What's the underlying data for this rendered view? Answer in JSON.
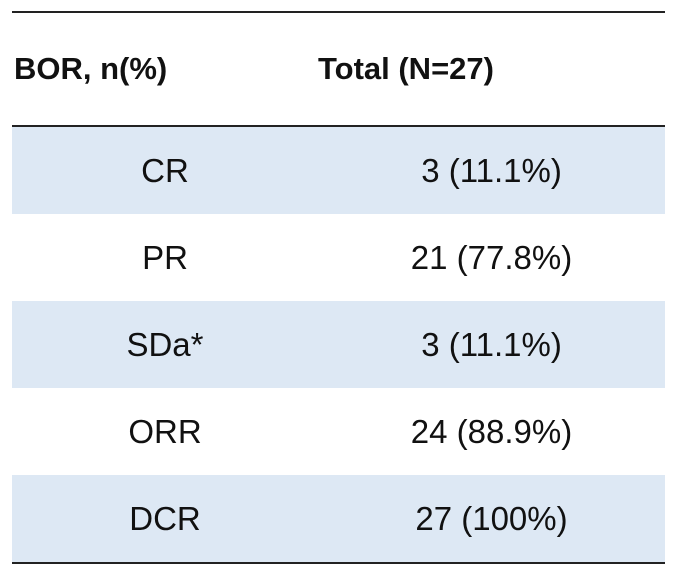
{
  "table": {
    "header": [
      "BOR, n(%)",
      "Total (N=27)"
    ],
    "rows": [
      [
        "CR",
        "3 (11.1%)"
      ],
      [
        "PR",
        "21 (77.8%)"
      ],
      [
        "SDa*",
        "3 (11.1%)"
      ],
      [
        "ORR",
        "24 (88.9%)"
      ],
      [
        "DCR",
        "27 (100%)"
      ]
    ]
  }
}
